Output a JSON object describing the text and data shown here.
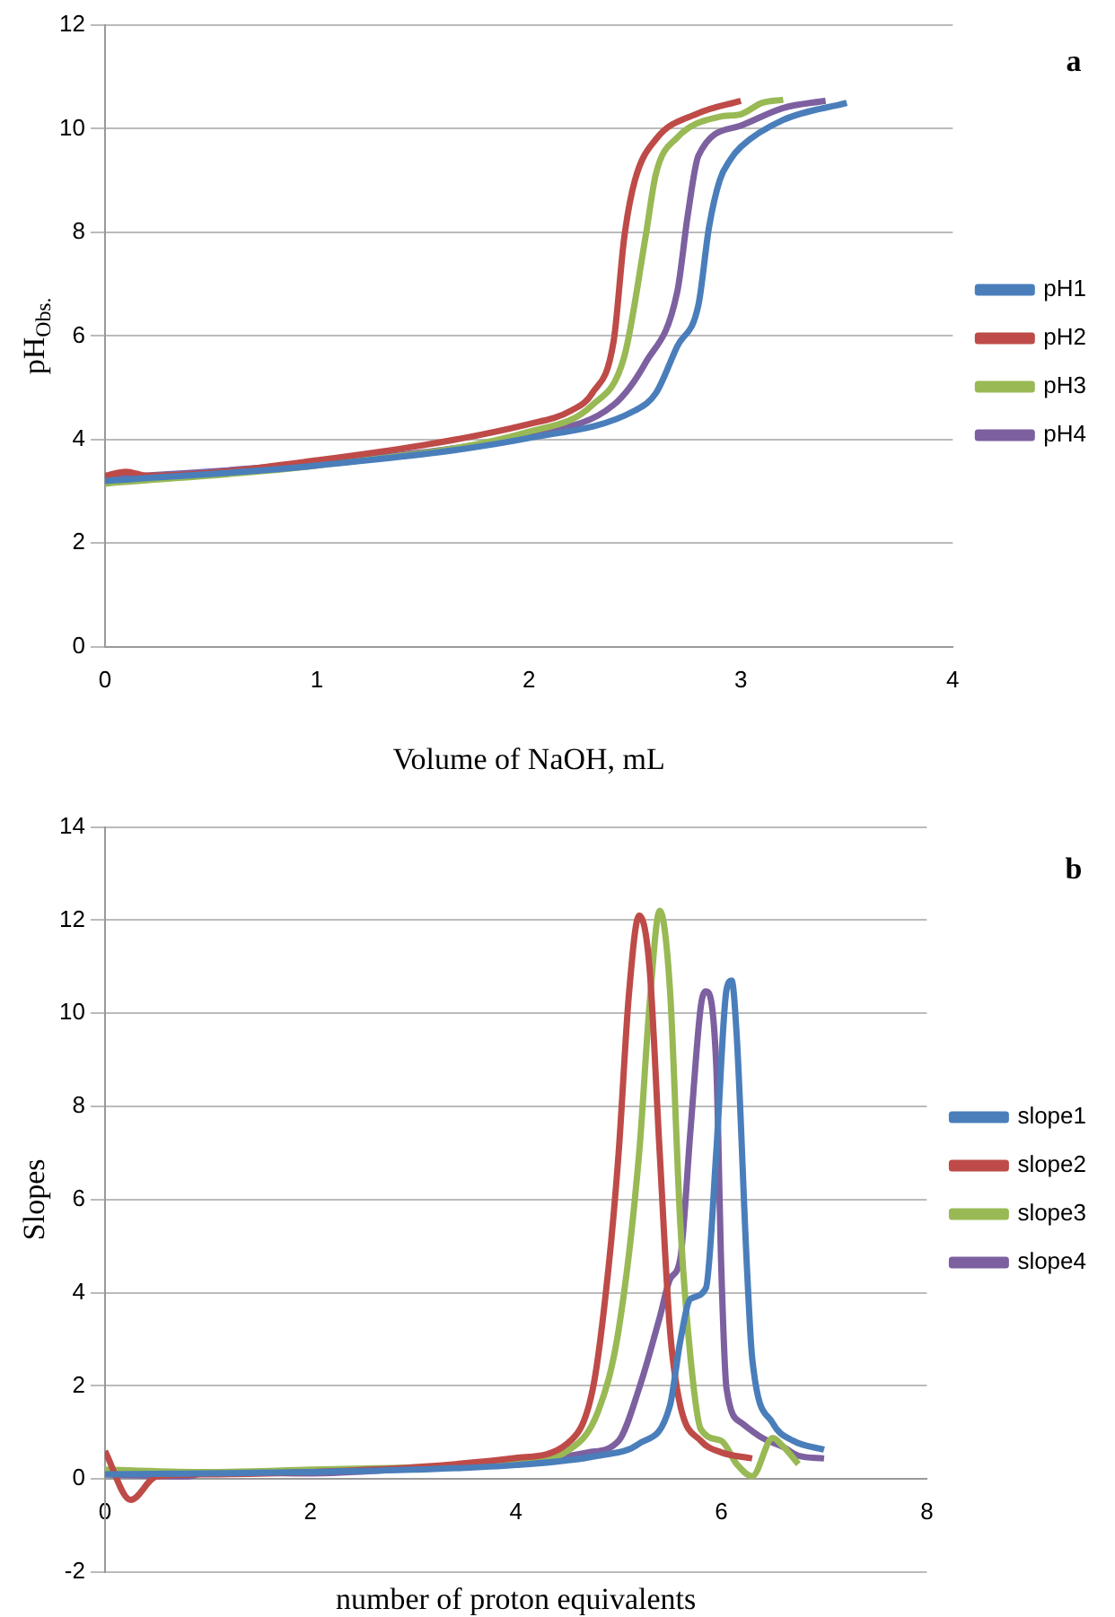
{
  "chart_data": [
    {
      "type": "line",
      "ylabel": "pH$_{Obs.}$",
      "xlabel": "Volume of NaOH, mL",
      "annotations": [
        "a"
      ],
      "xlim": [
        0,
        4
      ],
      "xticks": [
        0,
        1,
        2,
        3,
        4
      ],
      "ylim": [
        0,
        12
      ],
      "yticks": [
        0,
        2,
        4,
        6,
        8,
        10,
        12
      ],
      "grid": "y",
      "legend": "right",
      "marker": "none",
      "line_style": "solid",
      "series": [
        {
          "name": "pH1",
          "color": "#4a7ebb",
          "x": [
            0,
            1,
            2,
            2.5,
            2.6,
            2.7,
            2.8,
            2.85,
            2.9,
            2.95,
            3.0,
            3.2,
            3.5
          ],
          "values": [
            3.2,
            3.5,
            4.03,
            4.56,
            4.9,
            5.8,
            6.6,
            8.1,
            9.0,
            9.4,
            9.65,
            10.17,
            10.5
          ]
        },
        {
          "name": "pH2",
          "color": "#be4b48",
          "x": [
            0,
            0.1,
            0.2,
            1,
            2,
            2.2,
            2.3,
            2.4,
            2.45,
            2.5,
            2.6,
            2.8,
            3.0
          ],
          "values": [
            3.3,
            3.38,
            3.3,
            3.6,
            4.3,
            4.56,
            4.9,
            5.9,
            7.9,
            9.0,
            9.8,
            10.3,
            10.54
          ]
        },
        {
          "name": "pH3",
          "color": "#98b954",
          "x": [
            0,
            1,
            2,
            2.3,
            2.45,
            2.55,
            2.6,
            2.7,
            2.9,
            3.0,
            3.1,
            3.2
          ],
          "values": [
            3.15,
            3.5,
            4.15,
            4.67,
            5.6,
            7.9,
            9.14,
            9.83,
            10.23,
            10.28,
            10.5,
            10.56
          ]
        },
        {
          "name": "pH4",
          "color": "#7d60a0",
          "x": [
            0,
            1,
            2,
            2.4,
            2.55,
            2.7,
            2.75,
            2.8,
            3.0,
            3.2,
            3.4
          ],
          "values": [
            3.25,
            3.55,
            4.1,
            4.67,
            5.48,
            6.85,
            8.34,
            9.48,
            10.06,
            10.4,
            10.54
          ]
        }
      ]
    },
    {
      "type": "line",
      "ylabel": "Slopes",
      "xlabel": "number of proton equivalents",
      "annotations": [
        "b"
      ],
      "xlim": [
        0,
        8
      ],
      "xticks": [
        0,
        2,
        4,
        6,
        8
      ],
      "ylim": [
        -2,
        14
      ],
      "yticks": [
        -2,
        0,
        2,
        4,
        6,
        8,
        10,
        12,
        14
      ],
      "grid": "y",
      "legend": "right",
      "marker": "none",
      "line_style": "solid",
      "series": [
        {
          "name": "slope1",
          "color": "#4a7ebb",
          "x": [
            0,
            1,
            2,
            3,
            4,
            4.8,
            5.2,
            5.5,
            5.6,
            5.7,
            5.85,
            5.95,
            6.05,
            6.1,
            6.15,
            6.25,
            6.3,
            6.5,
            6.7,
            7.0
          ],
          "values": [
            0.1,
            0.12,
            0.15,
            0.2,
            0.3,
            0.5,
            0.76,
            1.58,
            2.96,
            3.87,
            4.1,
            7.0,
            10.5,
            10.7,
            9.5,
            4.5,
            2.6,
            1.2,
            0.82,
            0.63
          ]
        },
        {
          "name": "slope2",
          "color": "#be4b48",
          "x": [
            0,
            0.25,
            0.5,
            1,
            2,
            3,
            4,
            4.5,
            4.75,
            4.9,
            5.0,
            5.1,
            5.2,
            5.3,
            5.4,
            5.5,
            5.6,
            5.8,
            6.0,
            6.3
          ],
          "values": [
            0.6,
            -0.45,
            0.05,
            0.1,
            0.15,
            0.25,
            0.45,
            0.76,
            1.95,
            4.5,
            7.0,
            10.4,
            12.1,
            11.0,
            7.0,
            3.2,
            1.58,
            0.82,
            0.57,
            0.44
          ]
        },
        {
          "name": "slope3",
          "color": "#98b954",
          "x": [
            0,
            1,
            2,
            3,
            4,
            4.5,
            4.8,
            5.0,
            5.2,
            5.3,
            5.4,
            5.5,
            5.6,
            5.7,
            5.8,
            6.0,
            6.15,
            6.3,
            6.5,
            6.6,
            6.75
          ],
          "values": [
            0.2,
            0.15,
            0.2,
            0.25,
            0.35,
            0.6,
            1.45,
            3.2,
            7.0,
            10.15,
            12.2,
            10.5,
            5.5,
            2.6,
            1.07,
            0.82,
            0.32,
            0.06,
            0.88,
            0.7,
            0.32
          ]
        },
        {
          "name": "slope4",
          "color": "#7d60a0",
          "x": [
            0,
            0.8,
            1,
            2,
            3,
            4,
            4.7,
            5.0,
            5.2,
            5.4,
            5.5,
            5.6,
            5.7,
            5.8,
            5.85,
            5.95,
            6.0,
            6.05,
            6.2,
            6.4,
            6.6,
            6.75,
            7.0
          ],
          "values": [
            0.1,
            0.05,
            0.15,
            0.12,
            0.22,
            0.35,
            0.57,
            0.82,
            1.95,
            3.47,
            4.29,
            4.73,
            7.5,
            10.15,
            10.47,
            8.9,
            4.48,
            1.95,
            1.2,
            0.88,
            0.69,
            0.5,
            0.44
          ]
        }
      ]
    }
  ]
}
